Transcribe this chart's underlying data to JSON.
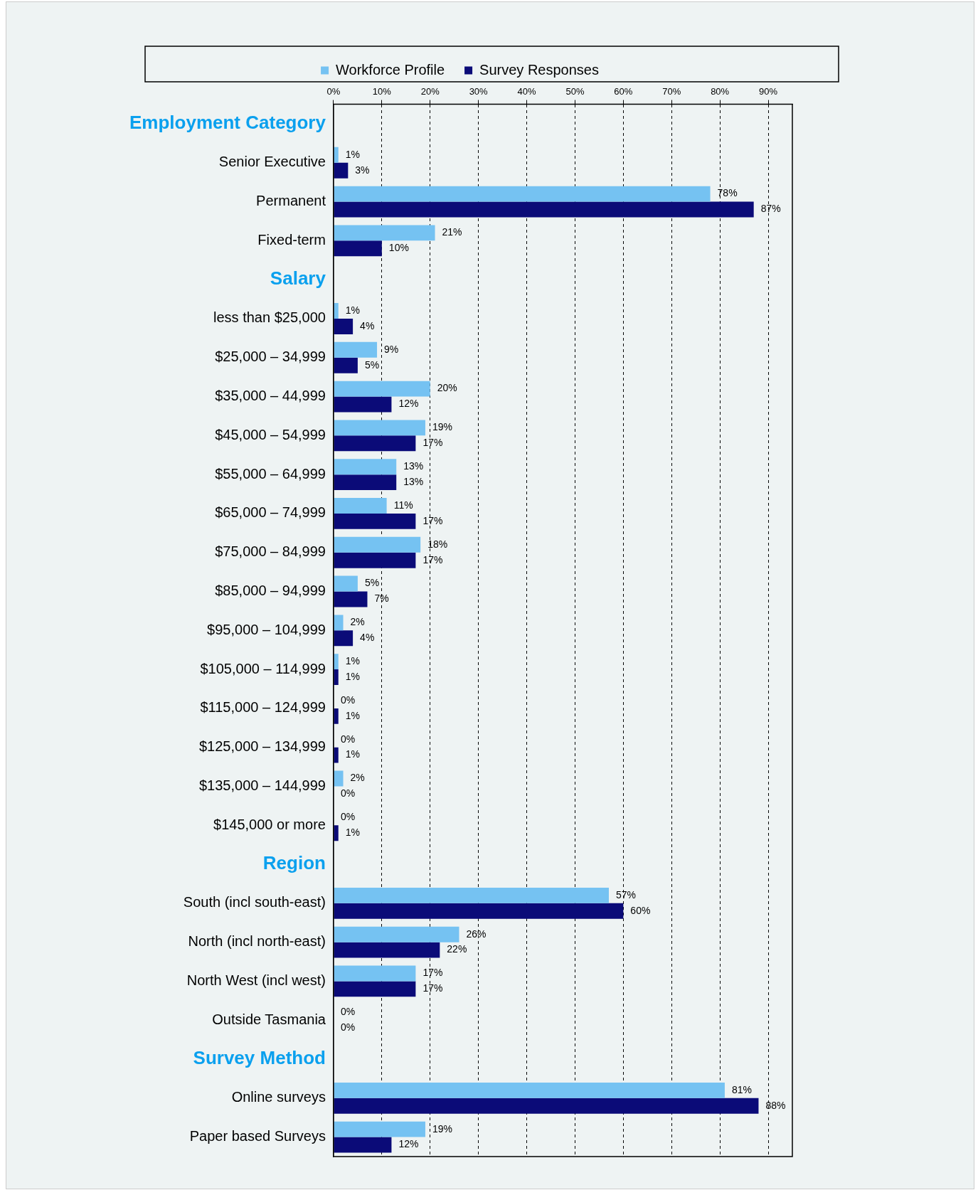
{
  "chart_data": {
    "type": "bar",
    "orientation": "horizontal",
    "legend": "top",
    "grid": "x",
    "data_labels": true,
    "categories": [
      "Employment Category",
      "Senior Executive",
      "Permanent",
      "Fixed-term",
      "Salary",
      "less than $25,000",
      "$25,000 – 34,999",
      "$35,000 – 44,999",
      "$45,000 – 54,999",
      "$55,000 – 64,999",
      "$65,000 – 74,999",
      "$75,000 – 84,999",
      "$85,000 – 94,999",
      "$95,000 – 104,999",
      "$105,000 – 114,999",
      "$115,000 – 124,999",
      "$125,000 – 134,999",
      "$135,000 – 144,999",
      "$145,000 or more",
      "Region",
      "South (incl south-east)",
      "North (incl north-east)",
      "North West (incl west)",
      "Outside Tasmania",
      "Survey Method",
      "Online surveys",
      "Paper based Surveys"
    ],
    "xlim": [
      0,
      95
    ],
    "xticks": [
      {
        "value": 0,
        "label": "0%"
      },
      {
        "value": 10,
        "label": "10%"
      },
      {
        "value": 20,
        "label": "20%"
      },
      {
        "value": 30,
        "label": "30%"
      },
      {
        "value": 40,
        "label": "40%"
      },
      {
        "value": 50,
        "label": "50%"
      },
      {
        "value": 60,
        "label": "60%"
      },
      {
        "value": 70,
        "label": "70%"
      },
      {
        "value": 80,
        "label": "80%"
      },
      {
        "value": 90,
        "label": "90%"
      }
    ],
    "series": [
      {
        "name": "Workforce Profile",
        "color": "#75c2f2",
        "values": [
          null,
          1,
          78,
          21,
          null,
          1,
          9,
          20,
          19,
          13,
          11,
          18,
          5,
          2,
          1,
          0,
          0,
          2,
          0,
          null,
          57,
          26,
          17,
          0,
          null,
          81,
          19
        ],
        "value_labels": [
          null,
          "1%",
          "78%",
          "21%",
          null,
          "1%",
          "9%",
          "20%",
          "19%",
          "13%",
          "11%",
          "18%",
          "5%",
          "2%",
          "1%",
          "0%",
          "0%",
          "2%",
          "0%",
          null,
          "57%",
          "26%",
          "17%",
          "0%",
          null,
          "81%",
          "19%"
        ]
      },
      {
        "name": "Survey Responses",
        "color": "#0b0b78",
        "values": [
          null,
          3,
          87,
          10,
          null,
          4,
          5,
          12,
          17,
          13,
          17,
          17,
          7,
          4,
          1,
          1,
          1,
          0,
          1,
          null,
          60,
          22,
          17,
          0,
          null,
          88,
          12
        ],
        "value_labels": [
          null,
          "3%",
          "87%",
          "10%",
          null,
          "4%",
          "5%",
          "12%",
          "17%",
          "13%",
          "17%",
          "17%",
          "7%",
          "4%",
          "1%",
          "1%",
          "1%",
          "0%",
          "1%",
          null,
          "60%",
          "22%",
          "17%",
          "0%",
          null,
          "88%",
          "12%"
        ]
      }
    ]
  }
}
